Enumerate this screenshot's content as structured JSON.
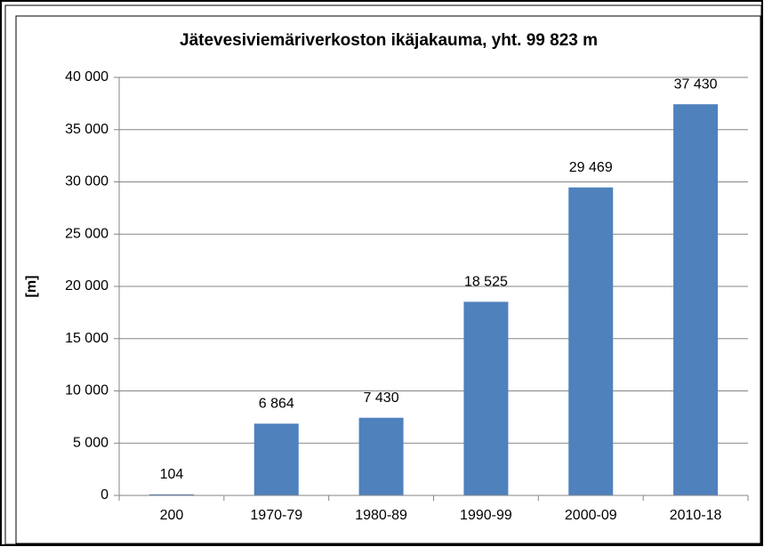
{
  "chart_data": {
    "type": "bar",
    "title": "Jätevesiviemäriverkoston ikäjakauma, yht. 99 823 m",
    "ylabel": "[m]",
    "categories": [
      "200",
      "1970-79",
      "1980-89",
      "1990-99",
      "2000-09",
      "2010-18"
    ],
    "values": [
      104,
      6864,
      7430,
      18525,
      29469,
      37430
    ],
    "value_labels": [
      "104",
      "6 864",
      "7 430",
      "18 525",
      "29 469",
      "37 430"
    ],
    "color": "#4f81bd",
    "ylim": [
      0,
      40000
    ],
    "yticks": [
      0,
      {
        "value": 5000,
        "label": "5 000"
      },
      {
        "value": 10000,
        "label": "10 000"
      },
      {
        "value": 15000,
        "label": "15 000"
      },
      {
        "value": 20000,
        "label": "20 000"
      },
      {
        "value": 25000,
        "label": "25 000"
      },
      {
        "value": 30000,
        "label": "30 000"
      },
      {
        "value": 35000,
        "label": "35 000"
      },
      {
        "value": 40000,
        "label": "40 000"
      }
    ],
    "grid": true
  }
}
